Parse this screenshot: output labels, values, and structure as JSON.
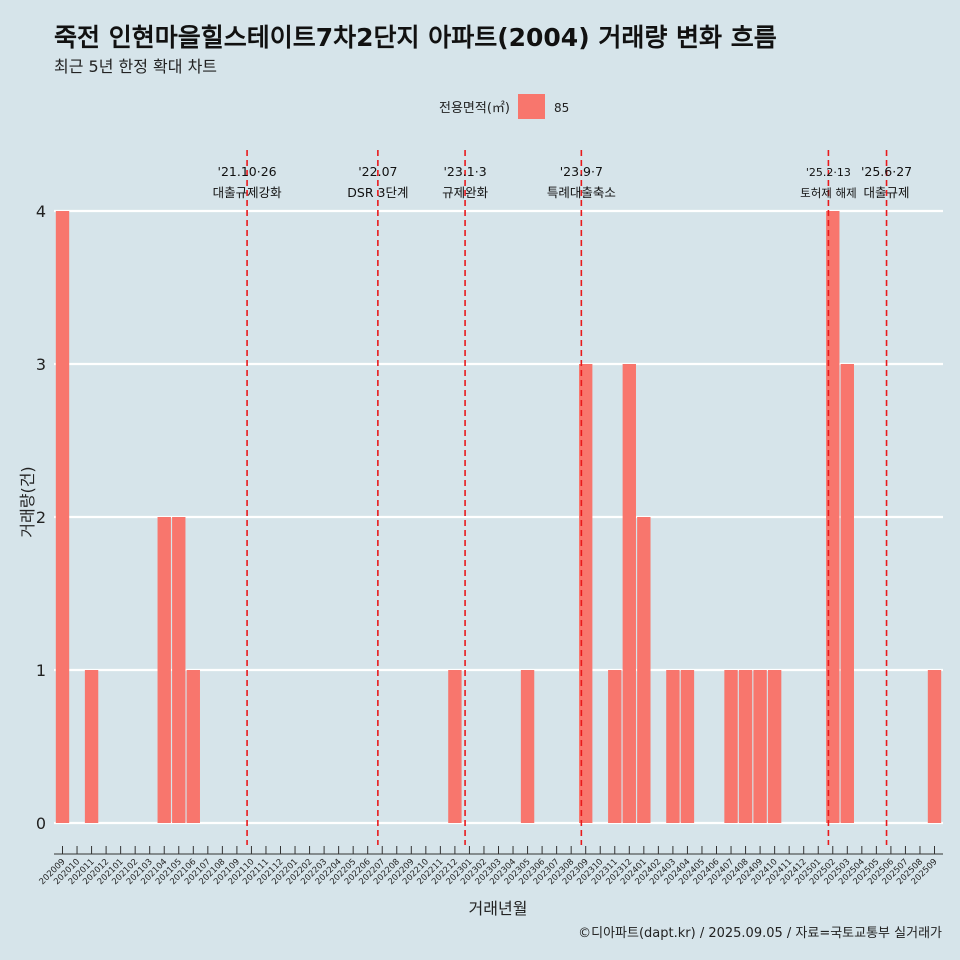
{
  "title": "죽전 인현마을힐스테이트7차2단지 아파트(2004) 거래량 변화 흐름",
  "subtitle": "최근 5년 한정 확대 차트",
  "footer": "©디아파트(dapt.kr) / 2025.09.05 / 자료=국토교통부 실거래가",
  "colors": {
    "bar": "#f8766d",
    "event_line": "#e8191c",
    "grid": "#ffffff",
    "background": "#d6e4ea"
  },
  "chart_data": {
    "type": "bar",
    "xlabel": "거래년월",
    "ylabel": "거래량(건)",
    "ylim": [
      0,
      4
    ],
    "yticks": [
      0,
      1,
      2,
      3,
      4
    ],
    "legend": {
      "title": "전용면적(㎡)",
      "placement": "top-center",
      "entries": [
        "85"
      ]
    },
    "categories": [
      "202009",
      "202010",
      "202011",
      "202012",
      "202101",
      "202102",
      "202103",
      "202104",
      "202105",
      "202106",
      "202107",
      "202108",
      "202109",
      "202110",
      "202111",
      "202112",
      "202201",
      "202202",
      "202203",
      "202204",
      "202205",
      "202206",
      "202207",
      "202208",
      "202209",
      "202210",
      "202211",
      "202212",
      "202301",
      "202302",
      "202303",
      "202304",
      "202305",
      "202306",
      "202307",
      "202308",
      "202309",
      "202310",
      "202311",
      "202312",
      "202401",
      "202402",
      "202403",
      "202404",
      "202405",
      "202406",
      "202407",
      "202408",
      "202409",
      "202410",
      "202411",
      "202412",
      "202501",
      "202502",
      "202503",
      "202504",
      "202505",
      "202506",
      "202507",
      "202508",
      "202509"
    ],
    "series": [
      {
        "name": "85",
        "values": [
          4,
          0,
          1,
          0,
          0,
          0,
          0,
          2,
          2,
          1,
          0,
          0,
          0,
          0,
          0,
          0,
          0,
          0,
          0,
          0,
          0,
          0,
          0,
          0,
          0,
          0,
          0,
          1,
          0,
          0,
          0,
          0,
          1,
          0,
          0,
          0,
          3,
          0,
          1,
          3,
          2,
          0,
          1,
          1,
          0,
          0,
          1,
          1,
          1,
          1,
          0,
          0,
          0,
          4,
          3,
          0,
          0,
          0,
          0,
          0,
          1
        ]
      }
    ],
    "events": [
      {
        "date": "'21.10·26",
        "label": "대출규제강화",
        "at": "202110"
      },
      {
        "date": "'22.07",
        "label": "DSR 3단계",
        "at": "202207"
      },
      {
        "date": "'23.1·3",
        "label": "규제완화",
        "at": "202301"
      },
      {
        "date": "'23.9·7",
        "label": "특례대출축소",
        "at": "202309"
      },
      {
        "date": "'25.2·13",
        "label": "토허제 해제",
        "at": "202502"
      },
      {
        "date": "'25.6·27",
        "label": "대출규제",
        "at": "202506"
      }
    ]
  }
}
